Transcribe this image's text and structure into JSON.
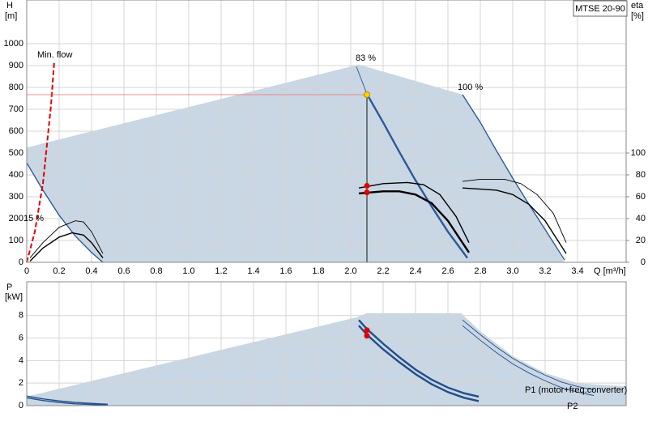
{
  "chart_data": [
    {
      "type": "line",
      "title": "MTSE 20-90",
      "ylabel": "H",
      "yunit": "[m]",
      "y2label": "eta",
      "y2unit": "[%]",
      "xlabel": "Q [m³/h]",
      "xlim": [
        0,
        3.7
      ],
      "ylim": [
        0,
        1200
      ],
      "y2lim": [
        0,
        240
      ],
      "grid": true,
      "xticks": [
        0,
        0.2,
        0.4,
        0.6,
        0.8,
        {
          "value": 1,
          "label": "1.0"
        },
        1.2,
        1.4,
        1.6,
        1.8,
        {
          "value": 2,
          "label": "2.0"
        },
        2.2,
        2.4,
        2.6,
        2.8,
        {
          "value": 3,
          "label": "3.0"
        },
        3.2,
        3.4
      ],
      "yticks": [
        0,
        100,
        200,
        300,
        400,
        500,
        600,
        700,
        800,
        900,
        1000
      ],
      "y2ticks": [
        0,
        20,
        40,
        60,
        80,
        100
      ],
      "annotations": [
        "Min. flow",
        "83 %",
        "100 %",
        "15 %"
      ],
      "series": [
        {
          "style": "area",
          "color": "#c9d6e3",
          "x": [
            0,
            2.05,
            2.69,
            2.8,
            2.9,
            3.0,
            3.1,
            3.2,
            3.32,
            0.47,
            0.4,
            0.3,
            0.2,
            0.1,
            0
          ],
          "values": [
            525,
            905,
            767,
            640,
            510,
            385,
            265,
            150,
            0,
            0,
            45,
            120,
            215,
            330,
            455
          ]
        },
        {
          "style": "line",
          "color": "#2a5a9a",
          "x": [
            0,
            0.1,
            0.2,
            0.3,
            0.4,
            0.47
          ],
          "values": [
            455,
            330,
            215,
            120,
            45,
            0
          ]
        },
        {
          "style": "thin",
          "color": "#2a5a9a",
          "x": [
            2.035,
            2.1
          ],
          "values": [
            895,
            770
          ]
        },
        {
          "style": "thick",
          "color": "#2a5a9a",
          "x": [
            2.1,
            2.2,
            2.3,
            2.4,
            2.5,
            2.6,
            2.72
          ],
          "values": [
            770,
            640,
            505,
            375,
            255,
            140,
            20
          ]
        },
        {
          "style": "line",
          "color": "#2a5a9a",
          "x": [
            2.69,
            2.8,
            2.9,
            3.0,
            3.1,
            3.2,
            3.32
          ],
          "values": [
            767,
            640,
            510,
            385,
            265,
            150,
            10
          ]
        },
        {
          "style": "thin",
          "color": "#000000",
          "axis": "y2",
          "x": [
            0.02,
            0.1,
            0.2,
            0.3,
            0.35,
            0.4,
            0.47
          ],
          "values": [
            4,
            18,
            32,
            38,
            37,
            28,
            8
          ]
        },
        {
          "style": "line",
          "color": "#000000",
          "axis": "y2",
          "x": [
            0.02,
            0.1,
            0.2,
            0.28,
            0.35,
            0.4,
            0.47
          ],
          "values": [
            1,
            13,
            23,
            27,
            25,
            18,
            4
          ]
        },
        {
          "style": "line",
          "color": "#000000",
          "axis": "y2",
          "x": [
            2.05,
            2.2,
            2.35,
            2.45,
            2.55,
            2.65,
            2.73
          ],
          "values": [
            68,
            72,
            73,
            71,
            62,
            42,
            18
          ]
        },
        {
          "style": "thick",
          "color": "#000000",
          "axis": "y2",
          "x": [
            2.05,
            2.2,
            2.3,
            2.4,
            2.5,
            2.6,
            2.73
          ],
          "values": [
            63,
            65,
            65,
            62,
            54,
            38,
            9
          ]
        },
        {
          "style": "thin",
          "color": "#000000",
          "axis": "y2",
          "x": [
            2.69,
            2.8,
            2.95,
            3.05,
            3.15,
            3.25,
            3.33
          ],
          "values": [
            74,
            76,
            76,
            72,
            62,
            45,
            18
          ]
        },
        {
          "style": "line",
          "color": "#000000",
          "axis": "y2",
          "x": [
            2.69,
            2.8,
            2.9,
            3.0,
            3.1,
            3.2,
            3.33
          ],
          "values": [
            68,
            67,
            66,
            62,
            53,
            38,
            8
          ]
        },
        {
          "style": "dashed",
          "color": "#e00000",
          "x": [
            0,
            0.05,
            0.1,
            0.15,
            0.17
          ],
          "values": [
            0,
            140,
            360,
            720,
            920
          ]
        },
        {
          "style": "thin",
          "color": "#f08080",
          "x": [
            0,
            2.1
          ],
          "values": [
            767,
            767
          ]
        },
        {
          "style": "thin",
          "color": "#000000",
          "x": [
            2.1,
            2.1
          ],
          "values": [
            767,
            0
          ]
        },
        {
          "style": "points",
          "color": "#e00000",
          "axis": "y2",
          "x": [
            2.1,
            2.1
          ],
          "values": [
            70,
            64
          ]
        },
        {
          "style": "points",
          "color": "#ffd000",
          "x": [
            2.1
          ],
          "values": [
            767
          ]
        }
      ]
    },
    {
      "type": "line",
      "ylabel": "P",
      "yunit": "[kW]",
      "xlim": [
        0,
        3.7
      ],
      "ylim": [
        0,
        11
      ],
      "grid": true,
      "yticks": [
        0,
        2,
        4,
        6,
        8
      ],
      "series": [
        {
          "style": "area",
          "color": "#c9d6e3",
          "x": [
            0,
            2.04,
            2.1,
            2.68,
            2.8,
            3.0,
            3.2,
            3.4,
            3.7,
            3.7,
            0
          ],
          "values": [
            0.8,
            7.85,
            8.2,
            8.2,
            6.6,
            4.4,
            2.9,
            2.0,
            1.7,
            0,
            0
          ]
        },
        {
          "style": "line",
          "color": "#1f4e8c",
          "x": [
            0,
            0.1,
            0.2,
            0.3,
            0.5
          ],
          "values": [
            0.85,
            0.6,
            0.42,
            0.28,
            0.12
          ]
        },
        {
          "style": "line",
          "color": "#1f4e8c",
          "x": [
            0,
            0.1,
            0.2,
            0.3,
            0.5
          ],
          "values": [
            0.7,
            0.45,
            0.28,
            0.16,
            0.05
          ]
        },
        {
          "style": "thick",
          "color": "#1f4e8c",
          "x": [
            2.05,
            2.1,
            2.2,
            2.3,
            2.4,
            2.5,
            2.6,
            2.7,
            2.79
          ],
          "values": [
            7.6,
            6.8,
            5.5,
            4.3,
            3.2,
            2.3,
            1.6,
            1.1,
            0.8
          ]
        },
        {
          "style": "thick",
          "color": "#1f4e8c",
          "x": [
            2.05,
            2.1,
            2.2,
            2.3,
            2.4,
            2.5,
            2.6,
            2.7,
            2.79
          ],
          "values": [
            7.1,
            6.3,
            5.0,
            3.85,
            2.8,
            1.9,
            1.2,
            0.7,
            0.4
          ]
        },
        {
          "name": "P1 (motor+freq.converter)",
          "style": "thin",
          "color": "#1f4e8c",
          "x": [
            2.69,
            2.8,
            2.9,
            3.0,
            3.1,
            3.2,
            3.3,
            3.4,
            3.5
          ],
          "values": [
            7.6,
            6.3,
            5.2,
            4.2,
            3.4,
            2.7,
            2.1,
            1.7,
            1.4
          ]
        },
        {
          "name": "P2",
          "style": "thin",
          "color": "#1f4e8c",
          "x": [
            2.69,
            2.8,
            2.9,
            3.0,
            3.1,
            3.2,
            3.3,
            3.4,
            3.5
          ],
          "values": [
            7.1,
            5.8,
            4.7,
            3.7,
            2.9,
            2.2,
            1.6,
            1.2,
            0.9
          ]
        },
        {
          "style": "points",
          "color": "#e00000",
          "x": [
            2.1,
            2.1
          ],
          "values": [
            6.7,
            6.2
          ]
        }
      ]
    }
  ]
}
